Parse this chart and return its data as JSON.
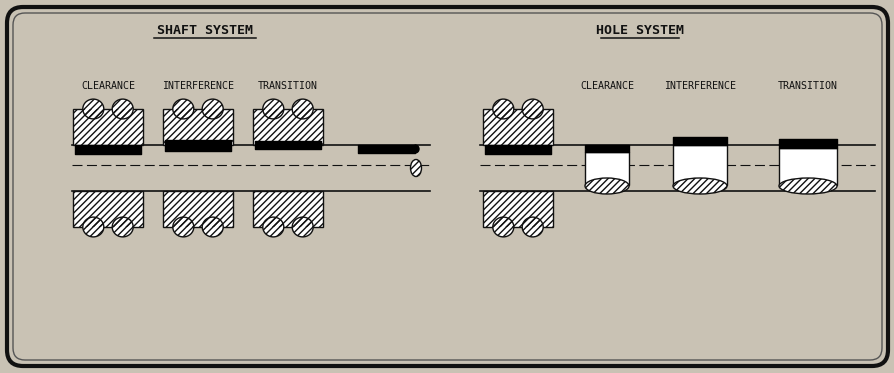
{
  "bg_color": "#c9c2b4",
  "border_color_outer": "#111111",
  "border_color_inner": "#555555",
  "line_color": "#111111",
  "hatch_color": "#111111",
  "shaft_title": "SHAFT SYSTEM",
  "hole_title": "HOLE SYSTEM",
  "shaft_labels": [
    "CLEARANCE",
    "INTERFERENCE",
    "TRANSITION"
  ],
  "hole_labels": [
    "CLEARANCE",
    "INTERFERENCE",
    "TRANSITION"
  ],
  "title_fontsize": 9.5,
  "label_fontsize": 7.2
}
